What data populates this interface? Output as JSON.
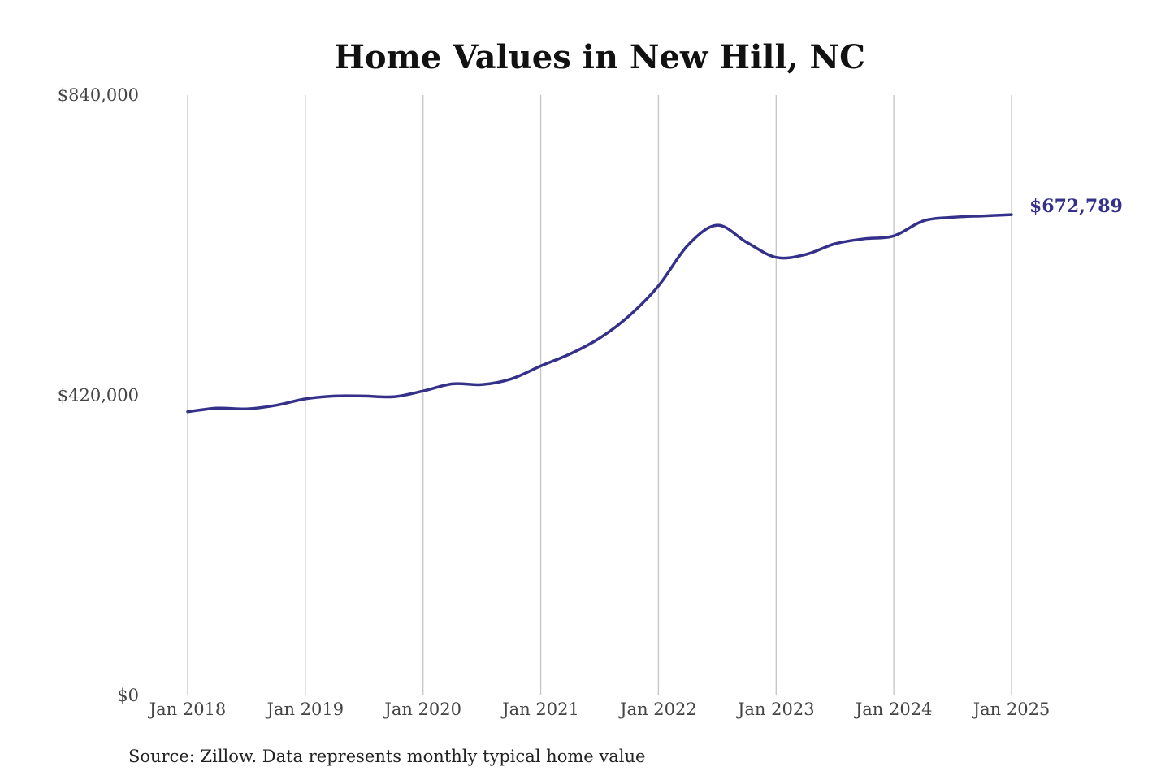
{
  "chart_data": {
    "type": "line",
    "title": "Home Values in New Hill, NC",
    "source": "Source: Zillow. Data represents monthly typical home value",
    "xlabel": "",
    "ylabel": "",
    "ylim": [
      0,
      840000
    ],
    "y_ticks": [
      {
        "value": 0,
        "label": "$0"
      },
      {
        "value": 420000,
        "label": "$420,000"
      },
      {
        "value": 840000,
        "label": "$840,000"
      }
    ],
    "x_range": [
      "2018-01",
      "2025-01"
    ],
    "x_ticks": [
      {
        "date": "2018-01",
        "label": "Jan 2018"
      },
      {
        "date": "2019-01",
        "label": "Jan 2019"
      },
      {
        "date": "2020-01",
        "label": "Jan 2020"
      },
      {
        "date": "2021-01",
        "label": "Jan 2021"
      },
      {
        "date": "2022-01",
        "label": "Jan 2022"
      },
      {
        "date": "2023-01",
        "label": "Jan 2023"
      },
      {
        "date": "2024-01",
        "label": "Jan 2024"
      },
      {
        "date": "2025-01",
        "label": "Jan 2025"
      }
    ],
    "grid": {
      "vertical": true,
      "horizontal": false
    },
    "legend": "none",
    "end_label": "$672,789",
    "series": [
      {
        "color": "#35318a",
        "points": [
          {
            "x": "2018-01",
            "y": 397000
          },
          {
            "x": "2018-04",
            "y": 402000
          },
          {
            "x": "2018-07",
            "y": 401000
          },
          {
            "x": "2018-10",
            "y": 406000
          },
          {
            "x": "2019-01",
            "y": 415000
          },
          {
            "x": "2019-04",
            "y": 419000
          },
          {
            "x": "2019-07",
            "y": 419000
          },
          {
            "x": "2019-10",
            "y": 418000
          },
          {
            "x": "2020-01",
            "y": 426000
          },
          {
            "x": "2020-04",
            "y": 436000
          },
          {
            "x": "2020-07",
            "y": 435000
          },
          {
            "x": "2020-10",
            "y": 443000
          },
          {
            "x": "2021-01",
            "y": 461000
          },
          {
            "x": "2021-04",
            "y": 478000
          },
          {
            "x": "2021-07",
            "y": 500000
          },
          {
            "x": "2021-10",
            "y": 531000
          },
          {
            "x": "2022-01",
            "y": 573000
          },
          {
            "x": "2022-04",
            "y": 630000
          },
          {
            "x": "2022-07",
            "y": 658000
          },
          {
            "x": "2022-10",
            "y": 634000
          },
          {
            "x": "2023-01",
            "y": 613000
          },
          {
            "x": "2023-04",
            "y": 617000
          },
          {
            "x": "2023-07",
            "y": 632000
          },
          {
            "x": "2023-10",
            "y": 639000
          },
          {
            "x": "2024-01",
            "y": 643000
          },
          {
            "x": "2024-04",
            "y": 664000
          },
          {
            "x": "2024-07",
            "y": 669000
          },
          {
            "x": "2024-10",
            "y": 671000
          },
          {
            "x": "2025-01",
            "y": 672789
          }
        ]
      }
    ]
  }
}
